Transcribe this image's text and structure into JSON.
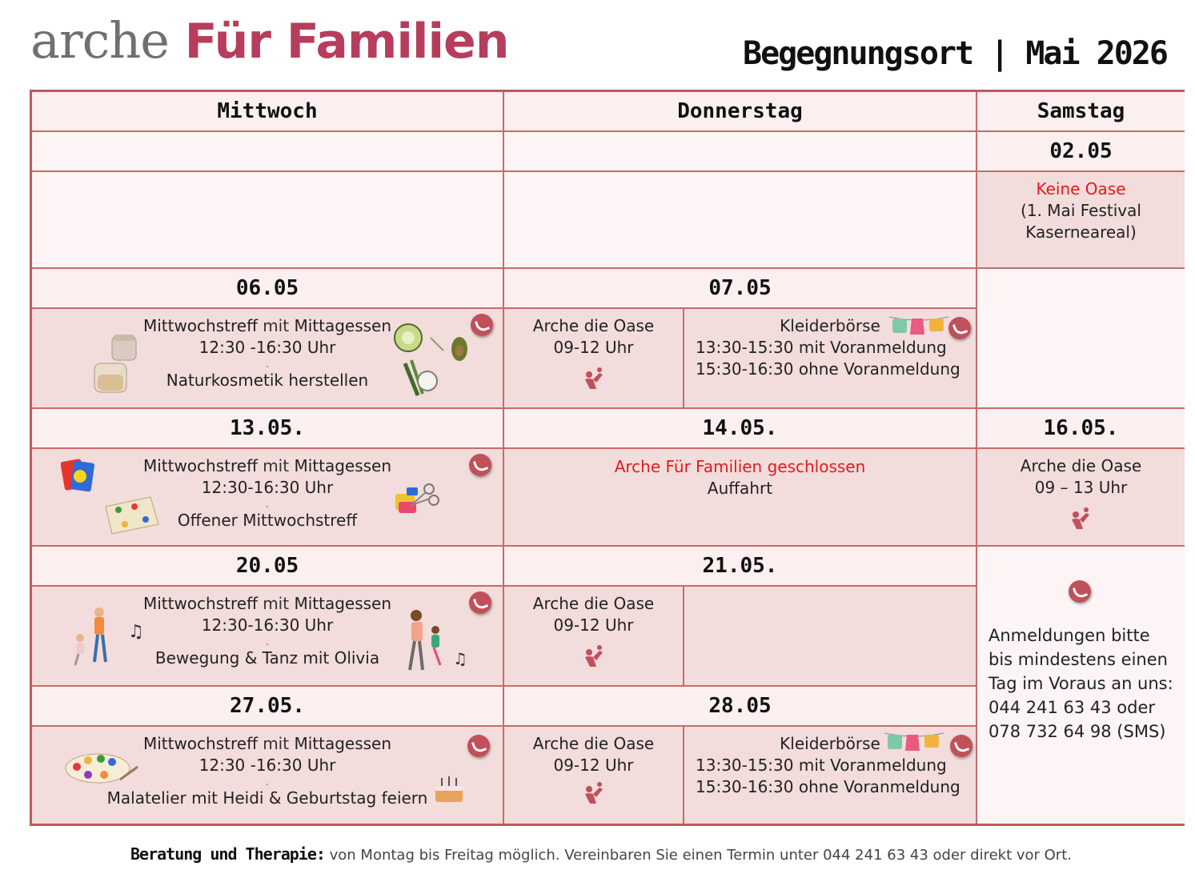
{
  "header": {
    "logo_part1": "arche",
    "logo_part2": "Für Familien",
    "title": "Begegnungsort | Mai 2026"
  },
  "days": {
    "wed": "Mittwoch",
    "thu": "Donnerstag",
    "sat": "Samstag"
  },
  "rows": {
    "r0": {
      "sat_date": "02.05",
      "sat_line1": "Keine Oase",
      "sat_line2": "(1. Mai Festival",
      "sat_line3": "Kaserneareal)"
    },
    "r1": {
      "wed_date": "06.05",
      "thu_date": "07.05",
      "wed_l1a": "Mittwochstreff",
      "wed_l1b": "mit",
      "wed_l1c": "Mittagessen",
      "wed_l2": "12:30 -16:30 Uhr",
      "wed_dot": ".",
      "wed_l3": "Naturkosmetik herstellen",
      "thu_a_l1": "Arche die Oase",
      "thu_a_l2": "09-12 Uhr",
      "thu_b_l1": "Kleiderbörse",
      "thu_b_l2": "13:30-15:30 mit Voranmeldung",
      "thu_b_l3": "15:30-16:30 ohne Voranmeldung"
    },
    "r2": {
      "wed_date": "13.05.",
      "thu_date": "14.05.",
      "sat_date": "16.05.",
      "wed_l1a": "Mittwochstreff",
      "wed_l1b": "mit",
      "wed_l1c": "Mittagessen",
      "wed_l2": "12:30-16:30 Uhr",
      "wed_dot": ".",
      "wed_l3": "Offener Mittwochstreff",
      "thu_l1": "Arche Für Familien geschlossen",
      "thu_l2": "Auffahrt",
      "sat_l1": "Arche die Oase",
      "sat_l2": "09 – 13 Uhr"
    },
    "r3": {
      "wed_date": "20.05",
      "thu_date": "21.05.",
      "wed_l1a": "Mittwochstreff",
      "wed_l1b": "mit",
      "wed_l1c": "Mittagessen",
      "wed_l2": "12:30-16:30 Uhr",
      "wed_dot": ".",
      "wed_l3": "Bewegung & Tanz mit Olivia",
      "thu_a_l1": "Arche die Oase",
      "thu_a_l2": "09-12 Uhr"
    },
    "r4": {
      "wed_date": "27.05.",
      "thu_date": "28.05",
      "wed_l1a": "Mittwochstreff",
      "wed_l1b": "mit",
      "wed_l1c": "Mittagessen",
      "wed_l2": "12:30 -16:30 Uhr",
      "wed_dot": ".",
      "wed_l3": "Malatelier mit Heidi & Geburtstag feiern",
      "thu_a_l1": "Arche die Oase",
      "thu_a_l2": "09-12 Uhr",
      "thu_b_l1": "Kleiderbörse",
      "thu_b_l2": "13:30-15:30 mit Voranmeldung",
      "thu_b_l3": "15:30-16:30 ohne Voranmeldung"
    }
  },
  "signup": {
    "l1": "Anmeldungen bitte",
    "l2": "bis mindestens einen",
    "l3": "Tag im Voraus an uns:",
    "l4": "044 241 63 43 oder",
    "l5": "078 732 64 98 (SMS)"
  },
  "footer": {
    "label": "Beratung und Therapie:",
    "text": " von Montag bis Freitag möglich. Vereinbaren Sie einen Termin unter 044 241 63 43 oder direkt vor Ort."
  },
  "colors": {
    "brand": "#b63d5c",
    "border": "#c96a6a",
    "header_bg": "#fbeff0",
    "body_bg": "#f2dcdc",
    "alert": "#e31b1b"
  },
  "icons": [
    "phone-icon",
    "parent-child-icon",
    "jars-icon",
    "cucumber-avocado-icon",
    "clothesline-icon",
    "cards-icon",
    "board-game-icon",
    "scissors-icon",
    "dancing-family-icon",
    "music-notes-icon",
    "paint-palette-icon",
    "birthday-cake-icon"
  ]
}
